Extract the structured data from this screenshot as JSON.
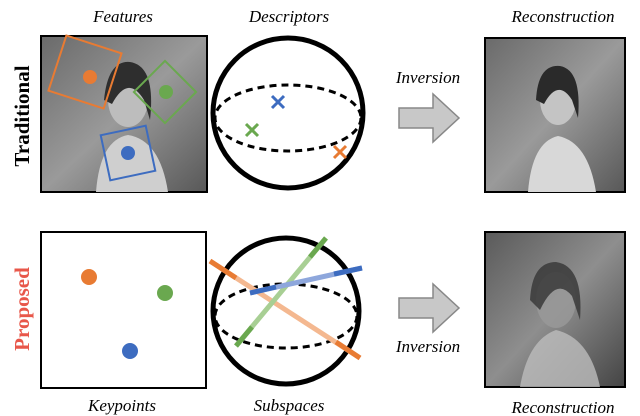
{
  "rows": [
    {
      "label": "Traditional",
      "panels": [
        "Features",
        "Descriptors",
        "Reconstruction"
      ],
      "arrow": "Inversion"
    },
    {
      "label": "Proposed",
      "panels": [
        "Keypoints",
        "Subspaces",
        "Reconstruction"
      ],
      "arrow": "Inversion"
    }
  ]
}
